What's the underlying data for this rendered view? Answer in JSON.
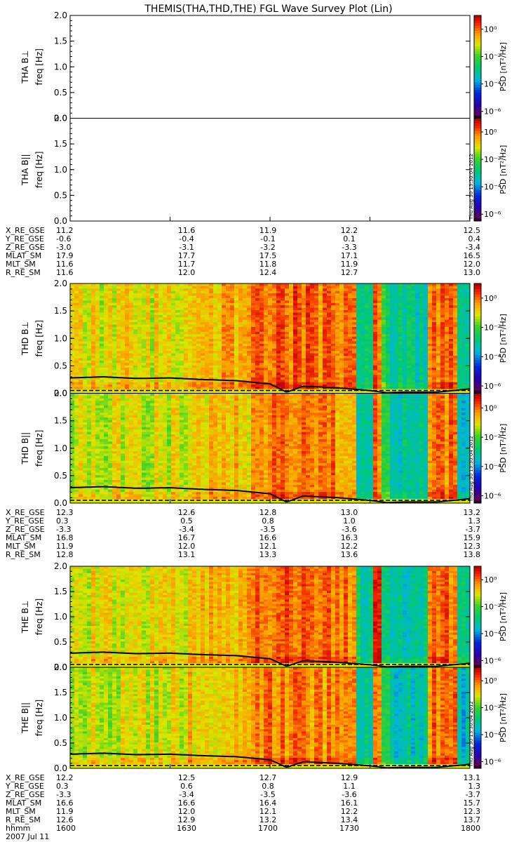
{
  "title": "THEMIS(THA,THD,THE) FGL Wave Survey Plot (Lin)",
  "stamp": "Thu Aug 30 13:30:04 2012",
  "colorbar": {
    "label": "PSD [nT²/Hz]",
    "ticks": [
      "10⁰",
      "10⁻²",
      "10⁻⁴",
      "10⁻⁶"
    ]
  },
  "y_axis": {
    "label": "freq [Hz]",
    "ticks": [
      "0.0",
      "0.5",
      "1.0",
      "1.5",
      "2.0"
    ]
  },
  "panels": [
    {
      "id": "tha-bperp",
      "probe_label": "THA B⊥",
      "has_data": false
    },
    {
      "id": "tha-bpar",
      "probe_label": "THA B||",
      "has_data": false
    },
    {
      "id": "thd-bperp",
      "probe_label": "THD B⊥",
      "has_data": true
    },
    {
      "id": "thd-bpar",
      "probe_label": "THD B||",
      "has_data": true
    },
    {
      "id": "the-bperp",
      "probe_label": "THE B⊥",
      "has_data": true
    },
    {
      "id": "the-bpar",
      "probe_label": "THE B||",
      "has_data": true
    }
  ],
  "ephemeris": [
    {
      "probe": "THA",
      "rows": [
        {
          "label": "X_RE_GSE",
          "values": [
            "11.2",
            "11.6",
            "11.9",
            "12.2",
            "12.5"
          ]
        },
        {
          "label": "Y_RE_GSE",
          "values": [
            "-0.6",
            "-0.4",
            "-0.1",
            "0.1",
            "0.4"
          ]
        },
        {
          "label": "Z_RE_GSE",
          "values": [
            "-3.0",
            "-3.1",
            "-3.2",
            "-3.3",
            "-3.4"
          ]
        },
        {
          "label": "MLAT_SM",
          "values": [
            "17.9",
            "17.7",
            "17.5",
            "17.1",
            "16.5"
          ]
        },
        {
          "label": "MLT_SM",
          "values": [
            "11.6",
            "11.7",
            "11.8",
            "11.9",
            "12.0"
          ]
        },
        {
          "label": "R_RE_SM",
          "values": [
            "11.6",
            "12.0",
            "12.4",
            "12.7",
            "13.0"
          ]
        }
      ]
    },
    {
      "probe": "THD",
      "rows": [
        {
          "label": "X_RE_GSE",
          "values": [
            "12.3",
            "12.6",
            "12.8",
            "13.0",
            "13.2"
          ]
        },
        {
          "label": "Y_RE_GSE",
          "values": [
            "0.3",
            "0.5",
            "0.8",
            "1.0",
            "1.3"
          ]
        },
        {
          "label": "Z_RE_GSE",
          "values": [
            "-3.3",
            "-3.4",
            "-3.5",
            "-3.6",
            "-3.7"
          ]
        },
        {
          "label": "MLAT_SM",
          "values": [
            "16.8",
            "16.7",
            "16.6",
            "16.3",
            "15.9"
          ]
        },
        {
          "label": "MLT_SM",
          "values": [
            "11.9",
            "12.0",
            "12.1",
            "12.2",
            "12.3"
          ]
        },
        {
          "label": "R_RE_SM",
          "values": [
            "12.8",
            "13.1",
            "13.3",
            "13.6",
            "13.8"
          ]
        }
      ]
    },
    {
      "probe": "THE",
      "rows": [
        {
          "label": "X_RE_GSE",
          "values": [
            "12.2",
            "12.5",
            "12.7",
            "12.9",
            "13.1"
          ]
        },
        {
          "label": "Y_RE_GSE",
          "values": [
            "0.3",
            "0.6",
            "0.8",
            "1.1",
            "1.3"
          ]
        },
        {
          "label": "Z_RE_GSE",
          "values": [
            "-3.3",
            "-3.4",
            "-3.5",
            "-3.6",
            "-3.7"
          ]
        },
        {
          "label": "MLAT_SM",
          "values": [
            "16.6",
            "16.6",
            "16.4",
            "16.1",
            "15.7"
          ]
        },
        {
          "label": "MLT_SM",
          "values": [
            "11.9",
            "12.0",
            "12.1",
            "12.2",
            "12.3"
          ]
        },
        {
          "label": "R_RE_SM",
          "values": [
            "12.6",
            "12.9",
            "13.2",
            "13.4",
            "13.7"
          ]
        },
        {
          "label": "hhmm",
          "values": [
            "1600",
            "1630",
            "1700",
            "1730",
            "1800"
          ]
        }
      ]
    }
  ],
  "date_label": "2007 Jul 11",
  "chart_data": {
    "type": "heatmap",
    "title": "THEMIS(THA,THD,THE) FGL Wave Survey Plot (Lin)",
    "x": [
      "1600",
      "1630",
      "1700",
      "1730",
      "1800"
    ],
    "xlabel": "hhmm",
    "ylabel": "freq [Hz]",
    "ylim": [
      0.0,
      2.0
    ],
    "colorbar_label": "PSD [nT²/Hz]",
    "clim_log10": [
      -6.5,
      1
    ],
    "scale": "log",
    "panels": [
      "THA B⊥",
      "THA B||",
      "THD B⊥",
      "THD B||",
      "THE B⊥",
      "THE B||"
    ],
    "gyro_curve_times": [
      "1600",
      "1610",
      "1620",
      "1630",
      "1640",
      "1650",
      "1700",
      "1705",
      "1710",
      "1720",
      "1730",
      "1735",
      "1740",
      "1750",
      "1800"
    ],
    "gyro_curve_hz": [
      0.28,
      0.3,
      0.27,
      0.28,
      0.25,
      0.23,
      0.17,
      0.02,
      0.13,
      0.1,
      0.05,
      0.01,
      0.02,
      0.02,
      0.08
    ]
  }
}
